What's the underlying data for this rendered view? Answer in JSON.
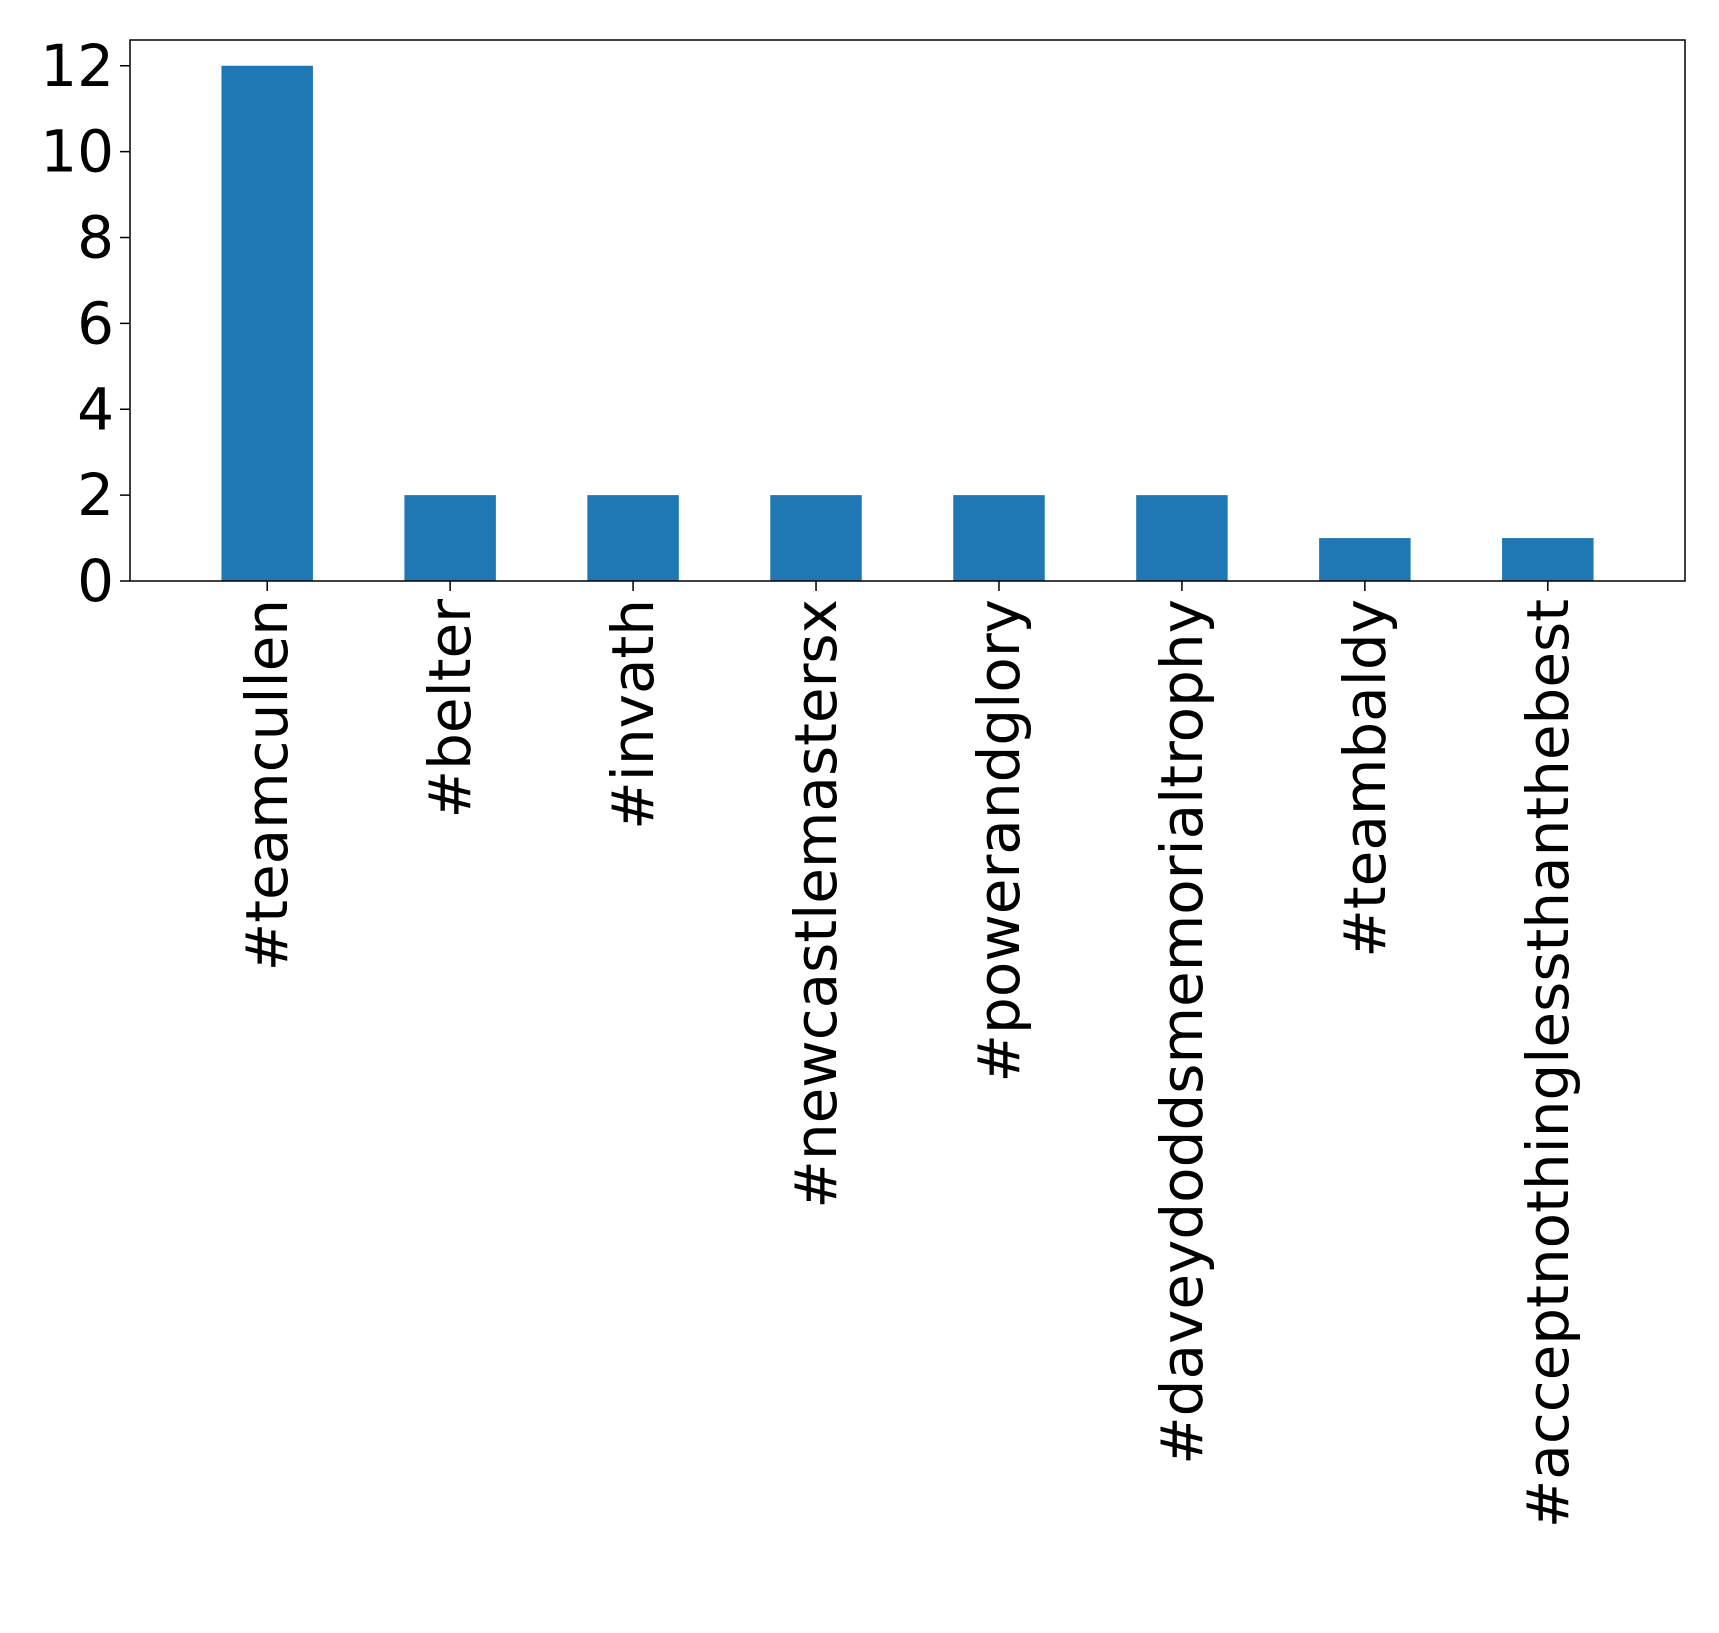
{
  "chart_data": {
    "type": "bar",
    "title": "",
    "xlabel": "",
    "ylabel": "",
    "categories": [
      "#teamcullen",
      "#belter",
      "#invath",
      "#newcastlemastersx",
      "#powerandglory",
      "#daveydoddsmemorialtrophy",
      "#teambaldy",
      "#acceptnothinglessthanthebest"
    ],
    "values": [
      12,
      2,
      2,
      2,
      2,
      2,
      1,
      1
    ],
    "ylim": [
      0,
      12.6
    ],
    "yticks": [
      0,
      2,
      4,
      6,
      8,
      10,
      12
    ],
    "grid": false,
    "legend": "none",
    "bar_color": "#1f77b4"
  }
}
